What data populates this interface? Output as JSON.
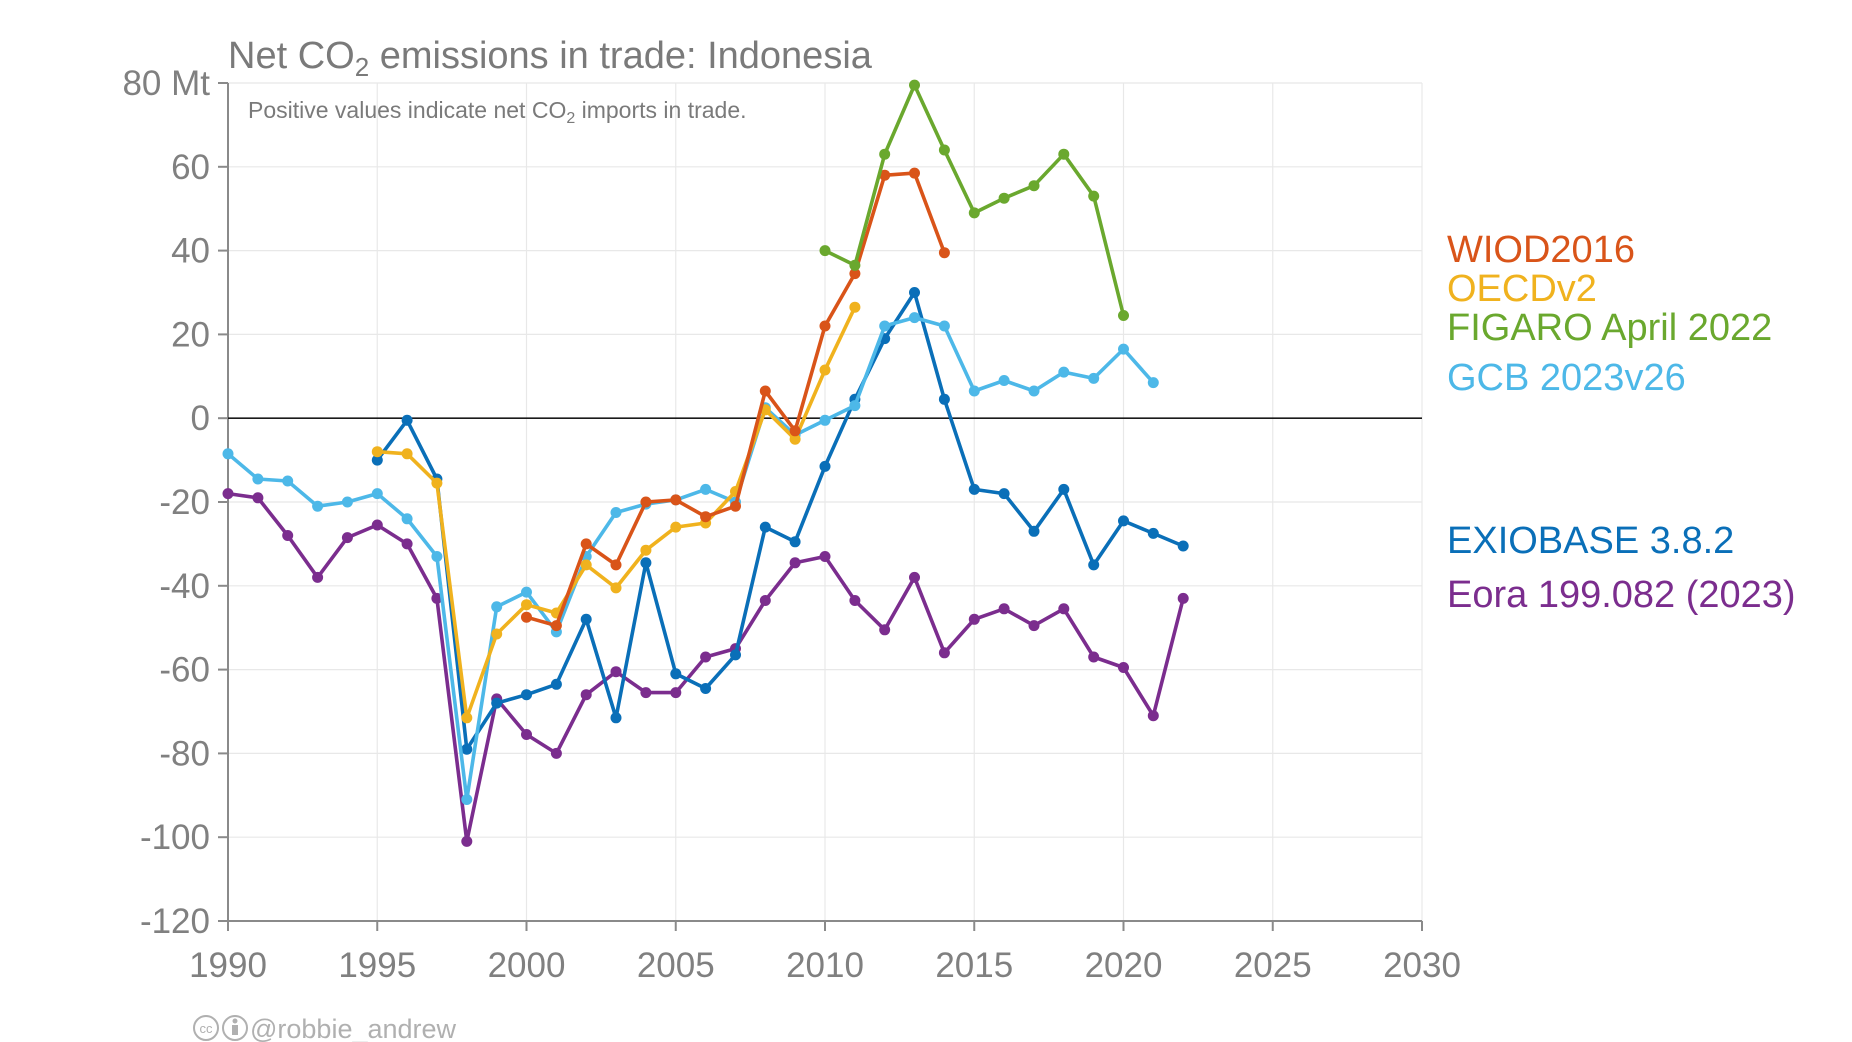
{
  "chart_data": {
    "type": "line",
    "title_prefix": "Net CO",
    "title_sub": "2",
    "title_suffix": " emissions in trade: Indonesia",
    "subtitle_prefix": "Positive values indicate net CO",
    "subtitle_sub": "2",
    "subtitle_suffix": " imports in trade.",
    "credit": "@robbie_andrew",
    "xlim": [
      1990,
      2030
    ],
    "ylim": [
      -120,
      80
    ],
    "x_ticks": [
      1990,
      1995,
      2000,
      2005,
      2010,
      2015,
      2020,
      2025,
      2030
    ],
    "y_ticks": [
      80,
      60,
      40,
      20,
      0,
      -20,
      -40,
      -60,
      -80,
      -100,
      -120
    ],
    "y_tick_labels": [
      "80 Mt",
      "60",
      "40",
      "20",
      "0",
      "-20",
      "-40",
      "-60",
      "-80",
      "-100",
      "-120"
    ],
    "grid": true,
    "legend_position": "right",
    "series": [
      {
        "name": "Eora 199.082 (2023)",
        "color": "#7b2d8e",
        "x": [
          1990,
          1991,
          1992,
          1993,
          1994,
          1995,
          1996,
          1997,
          1998,
          1999,
          2000,
          2001,
          2002,
          2003,
          2004,
          2005,
          2006,
          2007,
          2008,
          2009,
          2010,
          2011,
          2012,
          2013,
          2014,
          2015,
          2016,
          2017,
          2018,
          2019,
          2020,
          2021,
          2022
        ],
        "y": [
          -18,
          -19,
          -28,
          -38,
          -28.5,
          -25.5,
          -30,
          -43,
          -101,
          -67,
          -75.5,
          -80,
          -66,
          -60.5,
          -65.5,
          -65.5,
          -57,
          -55,
          -43.5,
          -34.5,
          -33,
          -43.5,
          -50.5,
          -38,
          -56,
          -48,
          -45.5,
          -49.5,
          -45.5,
          -57,
          -59.5,
          -71,
          -43
        ]
      },
      {
        "name": "EXIOBASE 3.8.2",
        "color": "#0a6fb8",
        "x": [
          1995,
          1996,
          1997,
          1998,
          1999,
          2000,
          2001,
          2002,
          2003,
          2004,
          2005,
          2006,
          2007,
          2008,
          2009,
          2010,
          2011,
          2012,
          2013,
          2014,
          2015,
          2016,
          2017,
          2018,
          2019,
          2020,
          2021,
          2022
        ],
        "y": [
          -10,
          -0.5,
          -14.5,
          -79,
          -68,
          -66,
          -63.5,
          -48,
          -71.5,
          -34.5,
          -61,
          -64.5,
          -56.5,
          -26,
          -29.5,
          -11.5,
          4.5,
          19,
          30,
          4.5,
          -17,
          -18,
          -27,
          -17,
          -35,
          -24.5,
          -27.5,
          -30.5
        ]
      },
      {
        "name": "GCB 2023v26",
        "color": "#4db8e8",
        "x": [
          1990,
          1991,
          1992,
          1993,
          1994,
          1995,
          1996,
          1997,
          1998,
          1999,
          2000,
          2001,
          2002,
          2003,
          2004,
          2005,
          2006,
          2007,
          2008,
          2009,
          2010,
          2011,
          2012,
          2013,
          2014,
          2015,
          2016,
          2017,
          2018,
          2019,
          2020,
          2021
        ],
        "y": [
          -8.5,
          -14.5,
          -15,
          -21,
          -20,
          -18,
          -24,
          -33,
          -91,
          -45,
          -41.5,
          -51,
          -33,
          -22.5,
          -20.5,
          -19.5,
          -17,
          -20,
          2.5,
          -4,
          -0.5,
          3,
          22,
          24,
          22,
          6.5,
          9,
          6.5,
          11,
          9.5,
          16.5,
          8.5
        ]
      },
      {
        "name": "OECDv2",
        "color": "#f0b21e",
        "x": [
          1995,
          1996,
          1997,
          1998,
          1999,
          2000,
          2001,
          2002,
          2003,
          2004,
          2005,
          2006,
          2007,
          2008,
          2009,
          2010,
          2011
        ],
        "y": [
          -8,
          -8.5,
          -15.5,
          -71.5,
          -51.5,
          -44.5,
          -46.5,
          -35,
          -40.5,
          -31.5,
          -26,
          -25,
          -17.5,
          2,
          -5,
          11.5,
          26.5
        ]
      },
      {
        "name": "WIOD2016",
        "color": "#d95419",
        "x": [
          2000,
          2001,
          2002,
          2003,
          2004,
          2005,
          2006,
          2007,
          2008,
          2009,
          2010,
          2011,
          2012,
          2013,
          2014
        ],
        "y": [
          -47.5,
          -49.5,
          -30,
          -35,
          -20,
          -19.5,
          -23.5,
          -21,
          6.5,
          -3,
          22,
          34.5,
          58,
          58.5,
          39.5
        ]
      },
      {
        "name": "FIGARO April 2022",
        "color": "#6aa82e",
        "x": [
          2010,
          2011,
          2012,
          2013,
          2014,
          2015,
          2016,
          2017,
          2018,
          2019,
          2020
        ],
        "y": [
          40,
          36.5,
          63,
          79.5,
          64,
          49,
          52.5,
          55.5,
          63,
          53,
          24.5
        ]
      }
    ]
  },
  "legend": [
    {
      "label": "WIOD2016",
      "color": "#d95419"
    },
    {
      "label": "OECDv2",
      "color": "#f0b21e"
    },
    {
      "label": "FIGARO April 2022",
      "color": "#6aa82e"
    },
    {
      "label": "GCB 2023v26",
      "color": "#4db8e8"
    },
    {
      "label": "EXIOBASE 3.8.2",
      "color": "#0a6fb8"
    },
    {
      "label": "Eora 199.082 (2023)",
      "color": "#7b2d8e"
    }
  ],
  "icons": [
    "cc-icon",
    "attribution-icon"
  ]
}
